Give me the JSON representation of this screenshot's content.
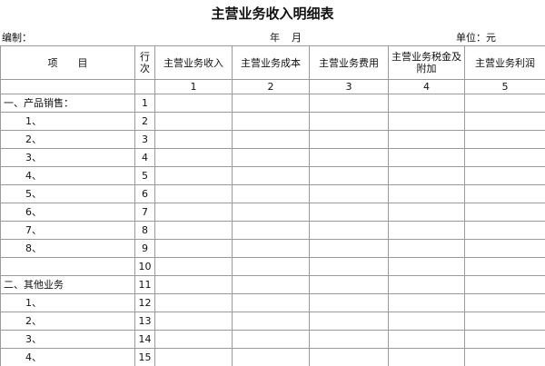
{
  "header": {
    "title": "主营业务收入明细表",
    "prepared_by": "编制：",
    "year": "年",
    "month": "月",
    "unit": "单位：元"
  },
  "table": {
    "columns": [
      "项　　目",
      [
        "行",
        "次"
      ],
      "主营业务收入",
      "主营业务成本",
      "主营业务费用",
      [
        "主营业务税金及",
        "附加"
      ],
      "主营业务利润"
    ],
    "column_numbers": [
      1,
      2,
      3,
      4,
      5
    ],
    "sections": [
      {
        "title": "一、产品销售：",
        "line": 1,
        "items": [
          {
            "label": "1、",
            "line": 2
          },
          {
            "label": "2、",
            "line": 3
          },
          {
            "label": "3、",
            "line": 4
          },
          {
            "label": "4、",
            "line": 5
          },
          {
            "label": "5、",
            "line": 6
          },
          {
            "label": "6、",
            "line": 7
          },
          {
            "label": "7、",
            "line": 8
          },
          {
            "label": "8、",
            "line": 9
          },
          {
            "line": 10
          }
        ]
      },
      {
        "title": "二、其他业务",
        "line": 11,
        "items": [
          {
            "label": "1、",
            "line": 12
          },
          {
            "label": "2、",
            "line": 13
          },
          {
            "label": "3、",
            "line": 14
          },
          {
            "label": "4、",
            "line": 15
          }
        ]
      }
    ]
  }
}
